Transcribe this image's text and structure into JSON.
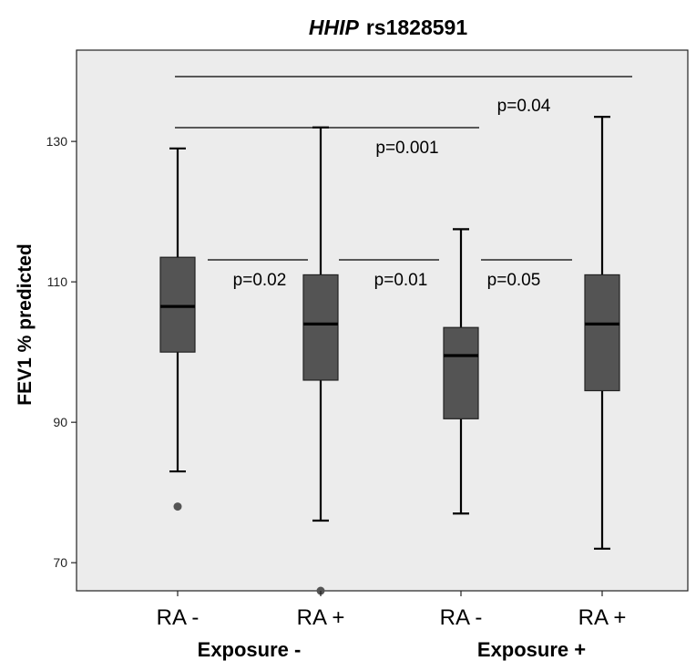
{
  "chart_data": {
    "type": "box",
    "title_gene": "HHIP",
    "title_snp": "rs1828591",
    "ylabel": "FEV1  % predicted",
    "ylim": [
      66,
      143
    ],
    "yticks": [
      "70",
      "90",
      "110",
      "130"
    ],
    "grid": false,
    "categories": [
      "RA -",
      "RA +",
      "RA -",
      "RA +"
    ],
    "groups": [
      {
        "label": "Exposure -",
        "categories": [
          0,
          1
        ]
      },
      {
        "label": "Exposure +",
        "categories": [
          2,
          3
        ]
      }
    ],
    "boxes": [
      {
        "category": "RA -",
        "whisker_low": 83,
        "q1": 100,
        "median": 106.5,
        "q3": 113.5,
        "whisker_high": 129,
        "outliers": [
          78
        ]
      },
      {
        "category": "RA +",
        "whisker_low": 76,
        "q1": 96,
        "median": 104,
        "q3": 111,
        "whisker_high": 132,
        "outliers": [
          66
        ]
      },
      {
        "category": "RA -",
        "whisker_low": 77,
        "q1": 90.5,
        "median": 99.5,
        "q3": 103.5,
        "whisker_high": 117.5,
        "outliers": []
      },
      {
        "category": "RA +",
        "whisker_low": 72,
        "q1": 94.5,
        "median": 104,
        "q3": 111,
        "whisker_high": 133.5,
        "outliers": []
      }
    ],
    "comparisons": [
      {
        "from": 0,
        "to": 1,
        "label": "p=0.02"
      },
      {
        "from": 1,
        "to": 2,
        "label": "p=0.01"
      },
      {
        "from": 2,
        "to": 3,
        "label": "p=0.05"
      },
      {
        "from": 0,
        "to": 2,
        "label": "p=0.001"
      },
      {
        "from": 0,
        "to": 3,
        "label": "p=0.04"
      }
    ],
    "colors": {
      "plot_background": "#ececec",
      "box_fill": "#545454",
      "line": "#000000",
      "outlier": "#545454"
    }
  }
}
